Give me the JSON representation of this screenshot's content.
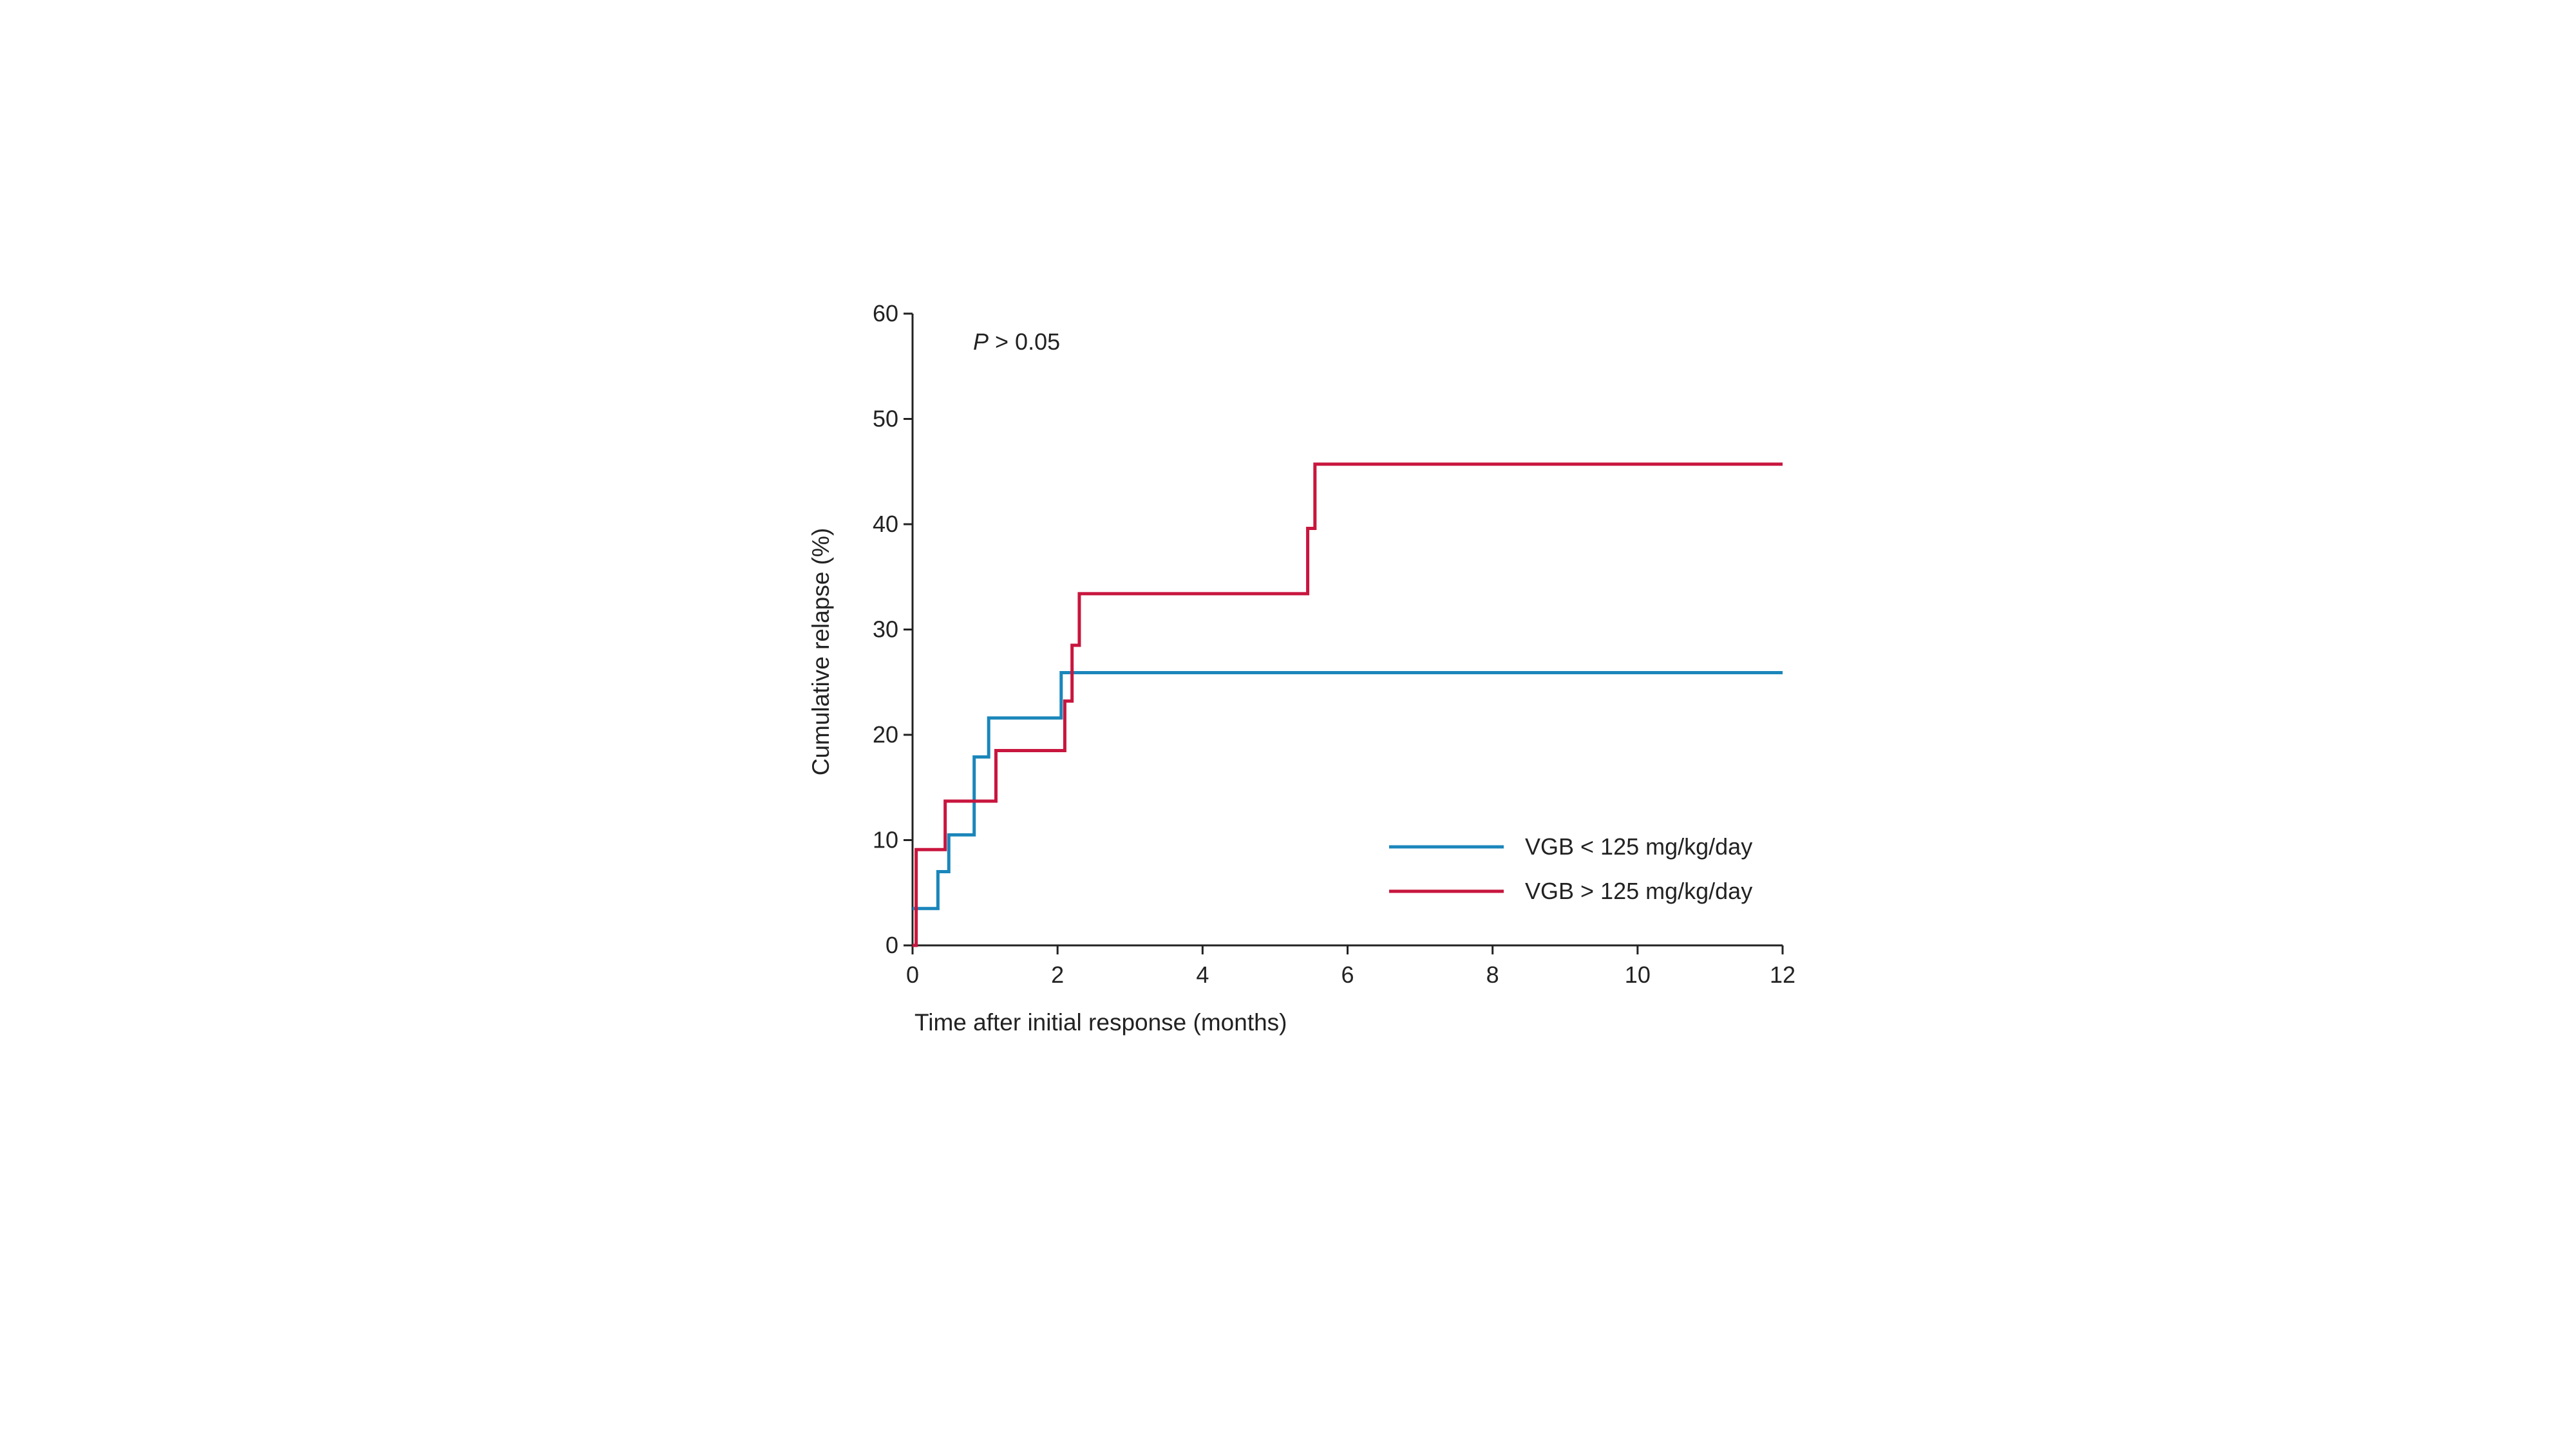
{
  "chart_data": {
    "type": "line",
    "subtype": "step",
    "title": "",
    "xlabel": "Time after initial response (months)",
    "ylabel": "Cumulative relapse (%)",
    "xlim": [
      0,
      12
    ],
    "ylim": [
      0,
      60
    ],
    "xticks": [
      0,
      2,
      4,
      6,
      8,
      10,
      12
    ],
    "yticks": [
      0,
      10,
      20,
      30,
      40,
      50,
      60
    ],
    "xtick_labels": [
      "0",
      "2",
      "4",
      "6",
      "8",
      "10",
      "12"
    ],
    "ytick_labels": [
      "0",
      "10",
      "20",
      "30",
      "40",
      "50",
      "60"
    ],
    "annotation": {
      "p_symbol": "P",
      "p_rest": " > 0.05"
    },
    "grid": false,
    "legend_position": "lower-right",
    "series": [
      {
        "name": "VGB < 125 mg/kg/day",
        "color": "#1a86bb",
        "x": [
          0,
          0.35,
          0.45,
          0.5,
          0.85,
          0.9,
          1.05,
          2.05,
          12
        ],
        "y": [
          3.5,
          7,
          7,
          10.5,
          17.9,
          17.9,
          21.6,
          25.9,
          25.9
        ]
      },
      {
        "name": "VGB > 125 mg/kg/day",
        "color": "#c8163e",
        "x": [
          0,
          0.05,
          0.45,
          1.15,
          2.1,
          2.2,
          2.3,
          5.45,
          5.55,
          12
        ],
        "y": [
          0,
          9.1,
          13.7,
          18.5,
          23.2,
          28.5,
          33.4,
          39.6,
          45.7,
          45.7
        ]
      }
    ]
  }
}
